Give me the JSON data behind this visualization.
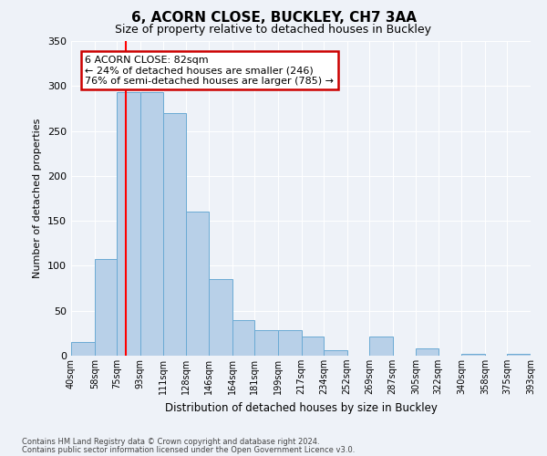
{
  "title": "6, ACORN CLOSE, BUCKLEY, CH7 3AA",
  "subtitle": "Size of property relative to detached houses in Buckley",
  "xlabel": "Distribution of detached houses by size in Buckley",
  "ylabel": "Number of detached properties",
  "bin_labels": [
    "40sqm",
    "58sqm",
    "75sqm",
    "93sqm",
    "111sqm",
    "128sqm",
    "146sqm",
    "164sqm",
    "181sqm",
    "199sqm",
    "217sqm",
    "234sqm",
    "252sqm",
    "269sqm",
    "287sqm",
    "305sqm",
    "322sqm",
    "340sqm",
    "358sqm",
    "375sqm",
    "393sqm"
  ],
  "bar_values": [
    15,
    108,
    293,
    293,
    270,
    160,
    85,
    40,
    28,
    28,
    21,
    6,
    0,
    21,
    0,
    8,
    0,
    2,
    0,
    2
  ],
  "bin_edges": [
    40,
    58,
    75,
    93,
    111,
    128,
    146,
    164,
    181,
    199,
    217,
    234,
    252,
    269,
    287,
    305,
    322,
    340,
    358,
    375,
    393
  ],
  "bar_color": "#b8d0e8",
  "bar_edge_color": "#6aaad4",
  "red_line_x": 82,
  "ylim": [
    0,
    350
  ],
  "yticks": [
    0,
    50,
    100,
    150,
    200,
    250,
    300,
    350
  ],
  "annotation_title": "6 ACORN CLOSE: 82sqm",
  "annotation_line1": "← 24% of detached houses are smaller (246)",
  "annotation_line2": "76% of semi-detached houses are larger (785) →",
  "annotation_box_color": "#ffffff",
  "annotation_box_edge": "#cc0000",
  "footer1": "Contains HM Land Registry data © Crown copyright and database right 2024.",
  "footer2": "Contains public sector information licensed under the Open Government Licence v3.0.",
  "background_color": "#eef2f8",
  "grid_color": "#ffffff",
  "title_fontsize": 11,
  "subtitle_fontsize": 9
}
